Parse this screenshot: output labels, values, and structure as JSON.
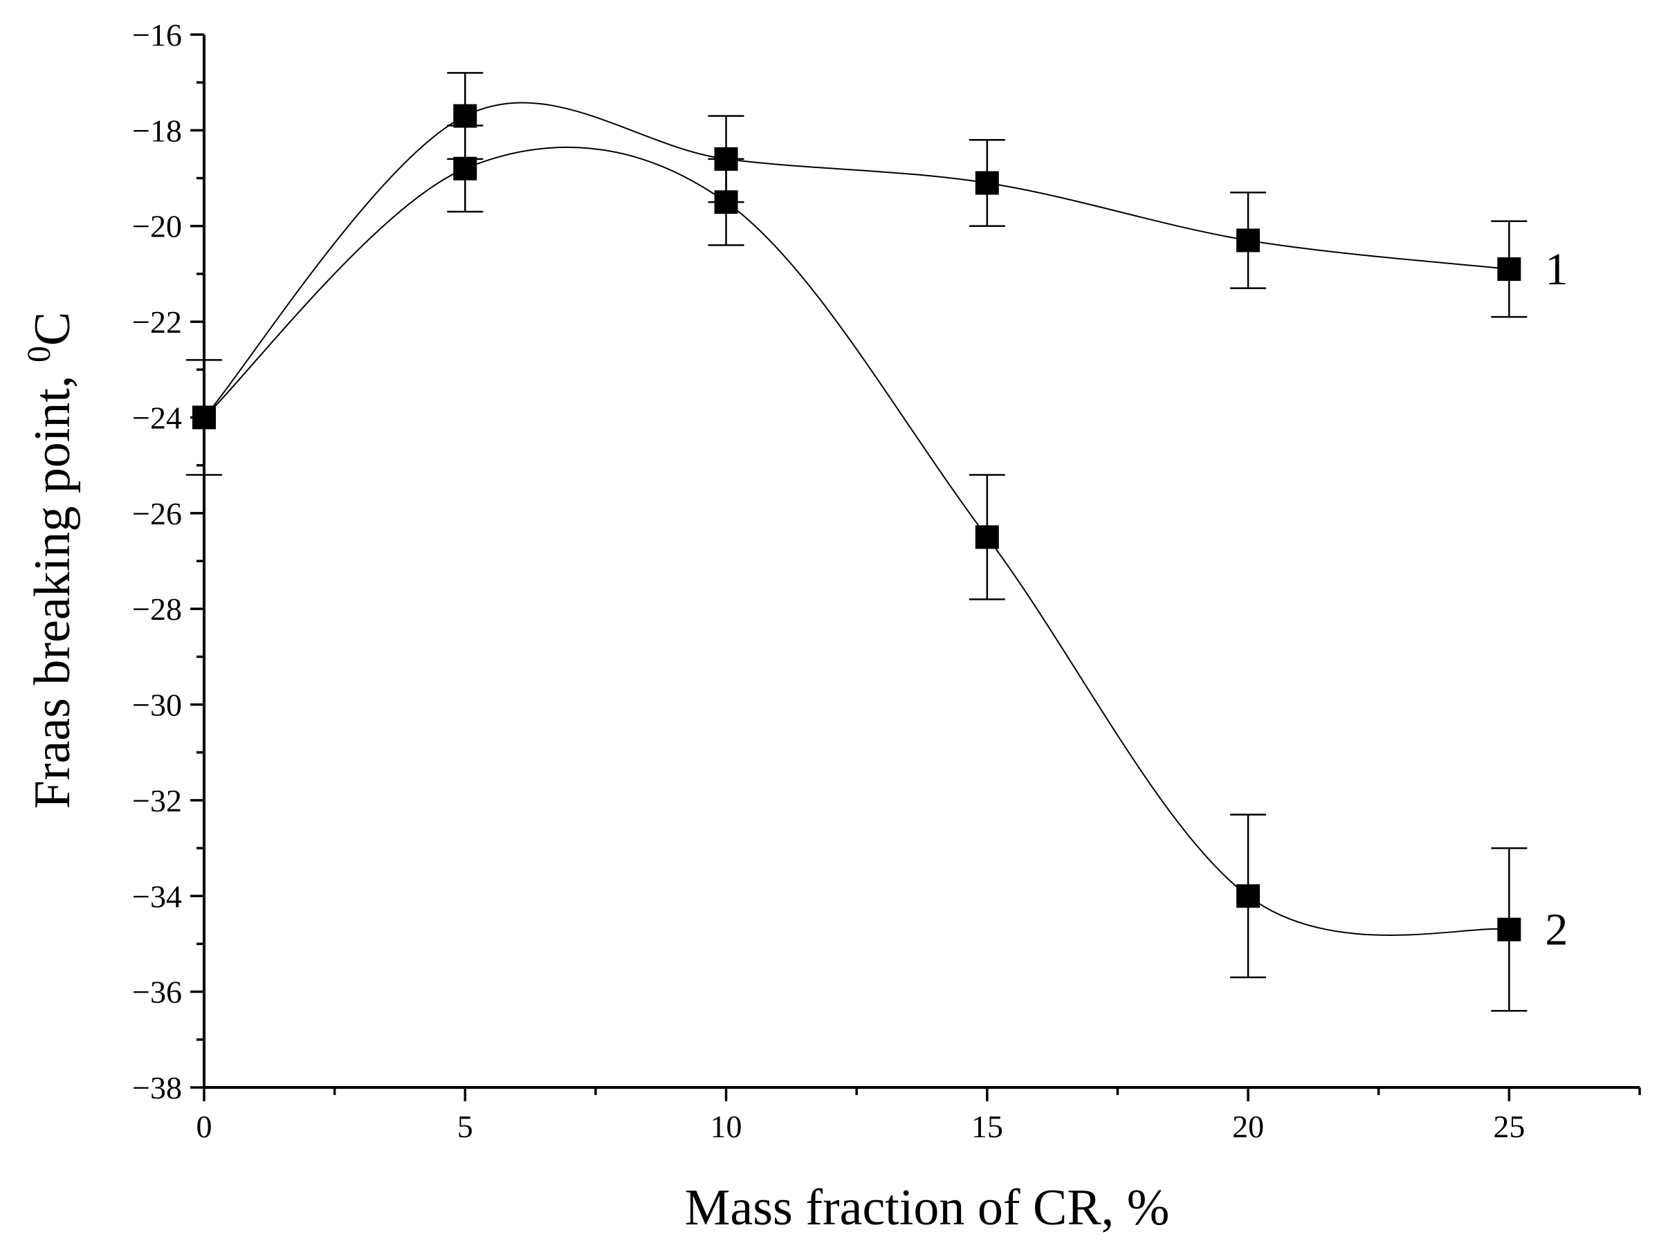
{
  "chart_data": {
    "type": "line",
    "xlabel": "Mass fraction of CR, %",
    "ylabel": "Fraas breaking point, ",
    "ylabel_unit_sup": "0",
    "ylabel_unit": "C",
    "xlim": [
      0,
      27.5
    ],
    "ylim": [
      -38,
      -16
    ],
    "x_ticks": [
      0,
      5,
      10,
      15,
      20,
      25
    ],
    "y_ticks": [
      -16,
      -18,
      -20,
      -22,
      -24,
      -26,
      -28,
      -30,
      -32,
      -34,
      -36,
      -38
    ],
    "x_tick_labels": [
      "0",
      "5",
      "10",
      "15",
      "20",
      "25"
    ],
    "y_tick_labels": [
      "−16",
      "−18",
      "−20",
      "−22",
      "−24",
      "−26",
      "−28",
      "−30",
      "−32",
      "−34",
      "−36",
      "−38"
    ],
    "x_minor_step": 2.5,
    "y_minor_step": 1,
    "marker": "square",
    "series": [
      {
        "name": "1",
        "x": [
          0,
          5,
          10,
          15,
          20,
          25
        ],
        "values": [
          -24.0,
          -17.7,
          -18.6,
          -19.1,
          -20.3,
          -20.9
        ],
        "err": [
          1.2,
          0.9,
          0.9,
          0.9,
          1.0,
          1.0
        ]
      },
      {
        "name": "2",
        "x": [
          0,
          5,
          10,
          15,
          20,
          25
        ],
        "values": [
          -24.0,
          -18.8,
          -19.5,
          -26.5,
          -34.0,
          -34.7
        ],
        "err": [
          0.0,
          0.9,
          0.9,
          1.3,
          1.7,
          1.7
        ]
      }
    ]
  }
}
